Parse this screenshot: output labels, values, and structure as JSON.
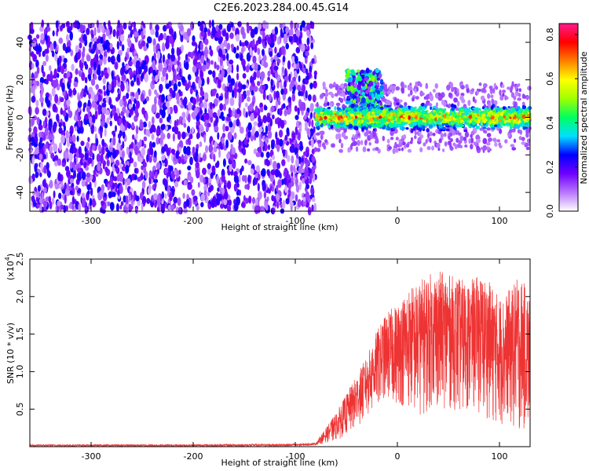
{
  "title": "C2E6.2023.284.00.45.G14",
  "chart_data": [
    {
      "type": "heatmap",
      "title": "",
      "xlabel": "Height of straight line (km)",
      "ylabel": "Frequency (Hz)",
      "xlim": [
        -360,
        130
      ],
      "ylim": [
        -50,
        50
      ],
      "xticks": [
        -300,
        -200,
        -100,
        0,
        100
      ],
      "yticks": [
        -40,
        -20,
        0,
        20,
        40
      ],
      "colorbar": {
        "label": "Normalized spectral amplitude",
        "range": [
          0.0,
          0.85
        ],
        "ticks": [
          0.0,
          0.2,
          0.4,
          0.6,
          0.8
        ],
        "tick_labels": [
          "0.0",
          "0.2",
          "0.4",
          "0.6",
          "0.8"
        ],
        "colormap": "rainbow (white-violet-blue-cyan-green-yellow-red-magenta)",
        "colors": [
          "#ffffff",
          "#b877ff",
          "#7000ff",
          "#0000ff",
          "#00e0ff",
          "#00ff60",
          "#a0ff00",
          "#ffff00",
          "#ff8000",
          "#ff0000",
          "#ff1a8c"
        ]
      },
      "regions": [
        {
          "x": [
            -360,
            -80
          ],
          "y": [
            -50,
            50
          ],
          "amplitude": [
            0.05,
            0.25
          ],
          "description_pattern": "dense violet speckle filling full frequency range"
        },
        {
          "x": [
            -80,
            130
          ],
          "y": [
            -8,
            8
          ],
          "amplitude": [
            0.15,
            0.8
          ],
          "center_frequency": 0,
          "description_pattern": "narrow band centered near 0 Hz"
        },
        {
          "x": [
            -50,
            -15
          ],
          "y": [
            -5,
            25
          ],
          "amplitude": [
            0.1,
            0.5
          ],
          "description_pattern": "broadened upper lobe"
        }
      ],
      "grid": false
    },
    {
      "type": "line",
      "title": "",
      "xlabel": "Height of straight line (km)",
      "ylabel": "SNR (10 * v/v)",
      "y_multiplier_label": "(x10",
      "y_multiplier_exp": "4",
      "xlim": [
        -360,
        130
      ],
      "ylim": [
        0,
        2.5
      ],
      "xticks": [
        -300,
        -200,
        -100,
        0,
        100
      ],
      "yticks": [
        0.5,
        1.0,
        1.5,
        2.0,
        2.5
      ],
      "ytick_labels": [
        "0.5",
        "1.0",
        "1.5",
        "2.0",
        "2.5"
      ],
      "series": [
        {
          "color": "#ee3333",
          "x": [
            -360,
            -300,
            -200,
            -100,
            -80,
            -70,
            -60,
            -50,
            -40,
            -30,
            -20,
            -10,
            0,
            10,
            20,
            30,
            40,
            50,
            60,
            70,
            80,
            90,
            100,
            110,
            120,
            130
          ],
          "y_min": [
            0.0,
            0.0,
            0.0,
            0.0,
            0.02,
            0.05,
            0.08,
            0.15,
            0.25,
            0.4,
            0.5,
            0.6,
            0.55,
            0.5,
            0.4,
            0.45,
            0.5,
            0.5,
            0.45,
            0.5,
            0.45,
            0.35,
            0.3,
            0.25,
            0.2,
            0.2
          ],
          "y_max": [
            0.03,
            0.03,
            0.03,
            0.04,
            0.05,
            0.25,
            0.45,
            0.7,
            0.95,
            1.2,
            1.55,
            1.8,
            1.9,
            2.1,
            2.2,
            2.3,
            2.35,
            2.3,
            2.25,
            2.2,
            2.3,
            2.2,
            2.0,
            2.1,
            2.3,
            2.0
          ]
        }
      ],
      "grid": false
    }
  ]
}
